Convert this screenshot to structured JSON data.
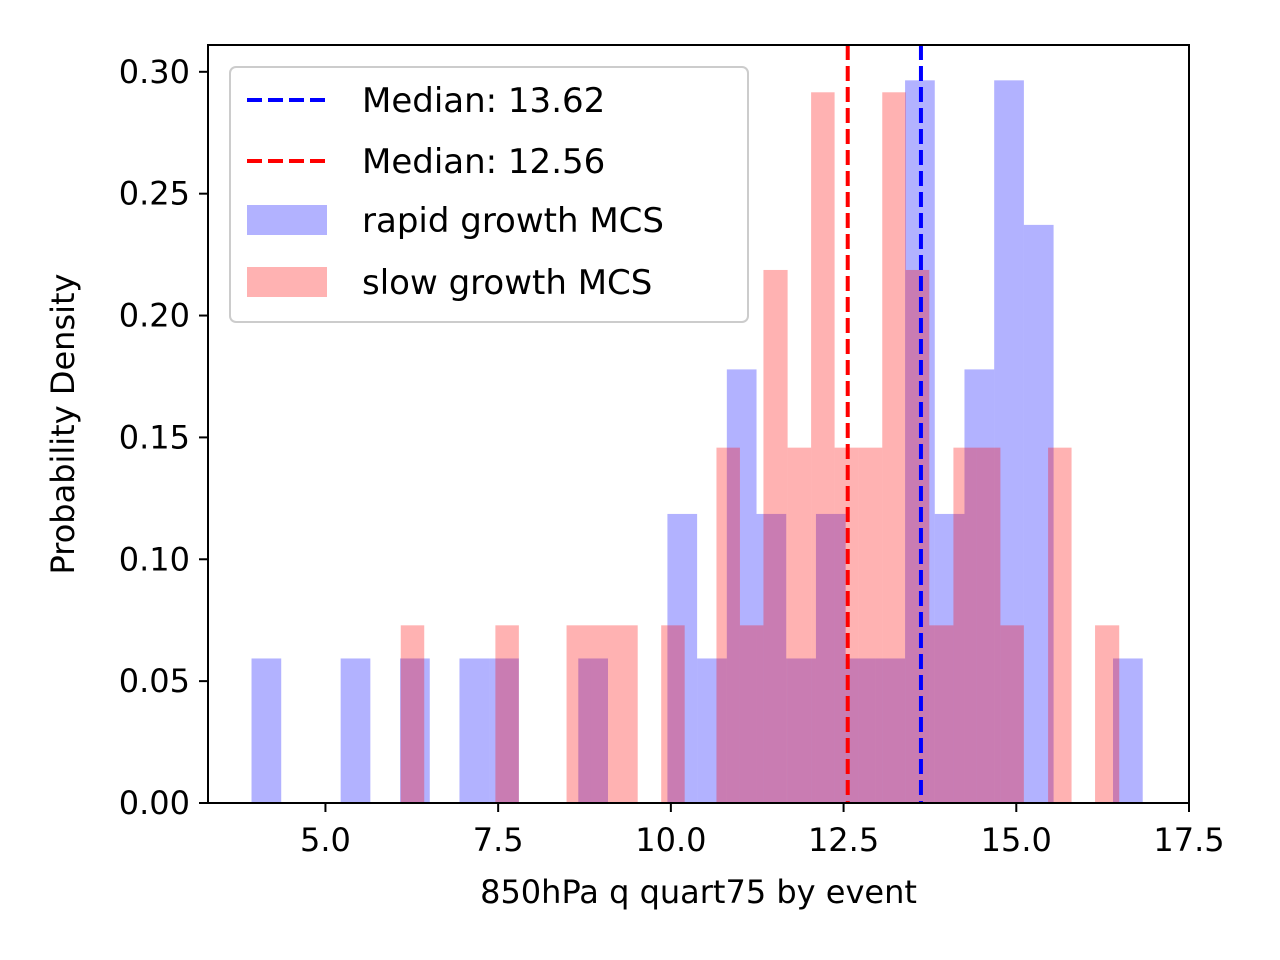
{
  "chart_data": {
    "type": "bar",
    "xlabel": "850hPa q quart75 by event",
    "ylabel": "Probability Density",
    "xlim": [
      3.3,
      17.5
    ],
    "ylim": [
      0,
      0.311
    ],
    "x_ticks": [
      5.0,
      7.5,
      10.0,
      12.5,
      15.0,
      17.5
    ],
    "x_tick_labels": [
      "5.0",
      "7.5",
      "10.0",
      "12.5",
      "15.0",
      "17.5"
    ],
    "y_ticks": [
      0.0,
      0.05,
      0.1,
      0.15,
      0.2,
      0.25,
      0.3
    ],
    "y_tick_labels": [
      "0.00",
      "0.05",
      "0.10",
      "0.15",
      "0.20",
      "0.25",
      "0.30"
    ],
    "grid": false,
    "legend_position": "top-left",
    "series": [
      {
        "name": "rapid growth MCS",
        "color": "#0000ff",
        "alpha": 0.3,
        "bins": [
          {
            "x0": 3.93,
            "x1": 4.36,
            "value": 0.0593
          },
          {
            "x0": 5.22,
            "x1": 5.65,
            "value": 0.0593
          },
          {
            "x0": 6.08,
            "x1": 6.51,
            "value": 0.0593
          },
          {
            "x0": 6.94,
            "x1": 7.37,
            "value": 0.0593
          },
          {
            "x0": 7.37,
            "x1": 7.8,
            "value": 0.0593
          },
          {
            "x0": 8.66,
            "x1": 9.09,
            "value": 0.0593
          },
          {
            "x0": 9.95,
            "x1": 10.38,
            "value": 0.1186
          },
          {
            "x0": 10.38,
            "x1": 10.81,
            "value": 0.0593
          },
          {
            "x0": 10.81,
            "x1": 11.24,
            "value": 0.1779
          },
          {
            "x0": 11.24,
            "x1": 11.67,
            "value": 0.1186
          },
          {
            "x0": 11.67,
            "x1": 12.1,
            "value": 0.0593
          },
          {
            "x0": 12.1,
            "x1": 12.53,
            "value": 0.1186
          },
          {
            "x0": 12.53,
            "x1": 12.96,
            "value": 0.0593
          },
          {
            "x0": 12.96,
            "x1": 13.39,
            "value": 0.0593
          },
          {
            "x0": 13.39,
            "x1": 13.82,
            "value": 0.2965
          },
          {
            "x0": 13.82,
            "x1": 14.25,
            "value": 0.1186
          },
          {
            "x0": 14.25,
            "x1": 14.68,
            "value": 0.1779
          },
          {
            "x0": 14.68,
            "x1": 15.11,
            "value": 0.2965
          },
          {
            "x0": 15.11,
            "x1": 15.54,
            "value": 0.2372
          },
          {
            "x0": 16.4,
            "x1": 16.83,
            "value": 0.0593
          }
        ]
      },
      {
        "name": "slow growth MCS",
        "color": "#ff0000",
        "alpha": 0.3,
        "bins": [
          {
            "x0": 6.09,
            "x1": 6.43,
            "value": 0.0729
          },
          {
            "x0": 7.46,
            "x1": 7.8,
            "value": 0.0729
          },
          {
            "x0": 8.49,
            "x1": 8.83,
            "value": 0.0729
          },
          {
            "x0": 8.83,
            "x1": 9.17,
            "value": 0.0729
          },
          {
            "x0": 9.17,
            "x1": 9.52,
            "value": 0.0729
          },
          {
            "x0": 9.86,
            "x1": 10.2,
            "value": 0.0729
          },
          {
            "x0": 10.66,
            "x1": 11.0,
            "value": 0.1458
          },
          {
            "x0": 11.0,
            "x1": 11.34,
            "value": 0.0729
          },
          {
            "x0": 11.34,
            "x1": 11.69,
            "value": 0.2187
          },
          {
            "x0": 11.69,
            "x1": 12.03,
            "value": 0.1458
          },
          {
            "x0": 12.03,
            "x1": 12.37,
            "value": 0.2916
          },
          {
            "x0": 12.37,
            "x1": 12.71,
            "value": 0.1458
          },
          {
            "x0": 12.71,
            "x1": 13.06,
            "value": 0.1458
          },
          {
            "x0": 13.06,
            "x1": 13.4,
            "value": 0.2916
          },
          {
            "x0": 13.4,
            "x1": 13.74,
            "value": 0.2187
          },
          {
            "x0": 13.74,
            "x1": 14.09,
            "value": 0.0729
          },
          {
            "x0": 14.09,
            "x1": 14.43,
            "value": 0.1458
          },
          {
            "x0": 14.43,
            "x1": 14.77,
            "value": 0.1458
          },
          {
            "x0": 14.77,
            "x1": 15.11,
            "value": 0.0729
          },
          {
            "x0": 15.46,
            "x1": 15.8,
            "value": 0.1458
          },
          {
            "x0": 16.14,
            "x1": 16.49,
            "value": 0.0729
          }
        ]
      }
    ],
    "median_lines": [
      {
        "label": "Median: 13.62",
        "x": 13.62,
        "color": "#0000ff",
        "style": "dashed"
      },
      {
        "label": "Median: 12.56",
        "x": 12.56,
        "color": "#ff0000",
        "style": "dashed"
      }
    ],
    "legend": [
      {
        "label": "Median: 13.62",
        "kind": "line",
        "color": "#0000ff"
      },
      {
        "label": "Median: 12.56",
        "kind": "line",
        "color": "#ff0000"
      },
      {
        "label": "rapid growth MCS",
        "kind": "patch",
        "color": "#0000ff",
        "alpha": 0.3
      },
      {
        "label": "slow growth MCS",
        "kind": "patch",
        "color": "#ff0000",
        "alpha": 0.3
      }
    ]
  }
}
